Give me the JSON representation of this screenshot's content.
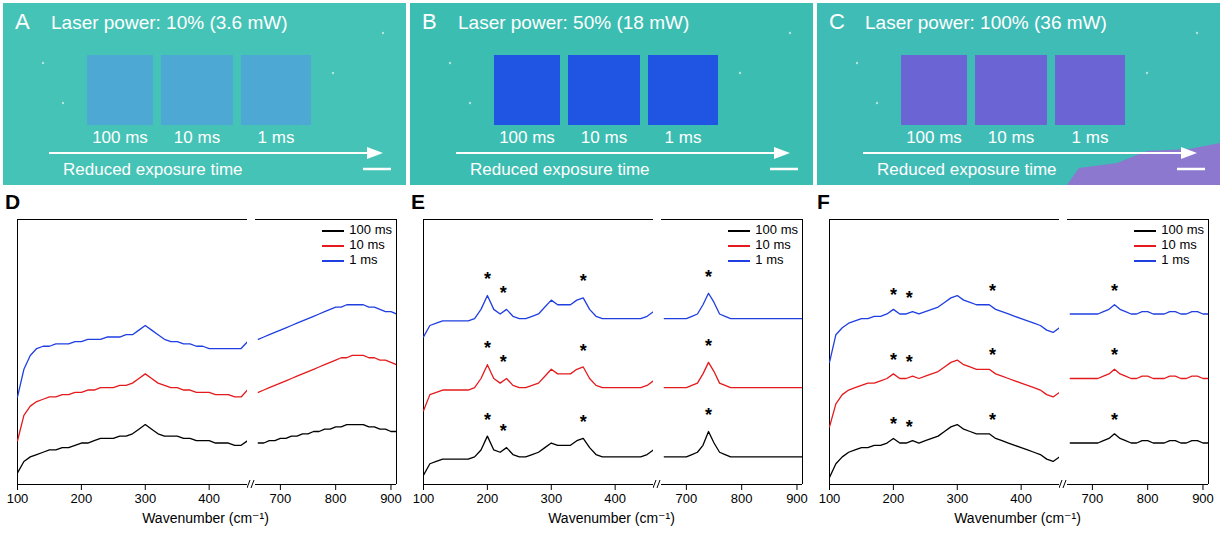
{
  "images": [
    {
      "panel": "A",
      "title": "Laser power: 10% (3.6 mW)",
      "labels": [
        "100 ms",
        "10 ms",
        "1 ms"
      ],
      "caption": "Reduced exposure time",
      "color": "#4ea6d6"
    },
    {
      "panel": "B",
      "title": "Laser power: 50% (18 mW)",
      "labels": [
        "100 ms",
        "10 ms",
        "1 ms"
      ],
      "caption": "Reduced exposure time",
      "color": "#1f4ee6"
    },
    {
      "panel": "C",
      "title": "Laser power: 100% (36 mW)",
      "labels": [
        "100 ms",
        "10 ms",
        "1 ms"
      ],
      "caption": "Reduced exposure time",
      "color": "#6e5fd6"
    }
  ],
  "chart_data": [
    {
      "type": "line",
      "title": "D",
      "x_label": "Wavenumber (cm⁻¹)",
      "x": [
        100,
        110,
        120,
        130,
        140,
        150,
        160,
        170,
        180,
        190,
        200,
        210,
        220,
        230,
        240,
        250,
        260,
        270,
        280,
        290,
        300,
        310,
        320,
        330,
        340,
        350,
        360,
        370,
        380,
        390,
        400,
        410,
        420,
        430,
        440,
        450,
        460,
        660,
        670,
        680,
        690,
        700,
        710,
        720,
        730,
        740,
        750,
        760,
        770,
        780,
        790,
        800,
        810,
        820,
        830,
        840,
        850,
        860,
        870,
        880,
        890,
        900,
        910
      ],
      "xlim": [
        100,
        910
      ],
      "x_break": [
        460,
        655
      ],
      "xticks": [
        100,
        200,
        300,
        400,
        700,
        800,
        900
      ],
      "ylim": [
        0,
        11.5
      ],
      "tick_labels": "x",
      "legend": "top-right",
      "series": [
        {
          "name": "100 ms",
          "color": "#000000",
          "values": [
            0.5,
            1.0,
            1.2,
            1.3,
            1.4,
            1.5,
            1.5,
            1.6,
            1.6,
            1.7,
            1.8,
            1.8,
            1.9,
            2.0,
            2.0,
            2.0,
            2.1,
            2.1,
            2.2,
            2.4,
            2.6,
            2.4,
            2.2,
            2.1,
            2.1,
            2.1,
            2.0,
            2.0,
            1.9,
            1.9,
            1.9,
            1.8,
            1.8,
            1.8,
            1.7,
            1.7,
            1.9,
            1.8,
            1.8,
            1.9,
            1.9,
            2.0,
            2.0,
            2.1,
            2.1,
            2.2,
            2.2,
            2.3,
            2.3,
            2.4,
            2.4,
            2.5,
            2.5,
            2.6,
            2.6,
            2.6,
            2.6,
            2.5,
            2.5,
            2.4,
            2.4,
            2.3,
            2.3
          ]
        },
        {
          "name": "10 ms",
          "color": "#e41a1c",
          "values": [
            1.9,
            3.0,
            3.4,
            3.6,
            3.7,
            3.8,
            3.8,
            3.9,
            3.9,
            4.0,
            4.0,
            4.1,
            4.1,
            4.2,
            4.2,
            4.2,
            4.3,
            4.3,
            4.4,
            4.6,
            4.8,
            4.6,
            4.4,
            4.3,
            4.2,
            4.2,
            4.1,
            4.1,
            4.0,
            4.0,
            4.0,
            3.9,
            3.9,
            3.9,
            3.8,
            3.8,
            4.1,
            4.0,
            4.1,
            4.2,
            4.3,
            4.4,
            4.5,
            4.6,
            4.7,
            4.8,
            4.9,
            5.0,
            5.1,
            5.2,
            5.3,
            5.4,
            5.5,
            5.5,
            5.6,
            5.6,
            5.6,
            5.5,
            5.5,
            5.4,
            5.4,
            5.3,
            5.2
          ]
        },
        {
          "name": "1 ms",
          "color": "#1f3fe0",
          "values": [
            3.8,
            5.0,
            5.6,
            5.9,
            6.0,
            6.0,
            6.1,
            6.1,
            6.1,
            6.2,
            6.2,
            6.3,
            6.3,
            6.3,
            6.4,
            6.4,
            6.4,
            6.5,
            6.5,
            6.7,
            6.9,
            6.7,
            6.5,
            6.3,
            6.2,
            6.2,
            6.1,
            6.1,
            6.0,
            6.0,
            5.9,
            5.9,
            5.9,
            5.9,
            5.9,
            5.9,
            6.2,
            6.3,
            6.4,
            6.5,
            6.6,
            6.7,
            6.8,
            6.9,
            7.0,
            7.1,
            7.2,
            7.3,
            7.4,
            7.5,
            7.6,
            7.7,
            7.7,
            7.8,
            7.8,
            7.8,
            7.8,
            7.7,
            7.7,
            7.6,
            7.5,
            7.5,
            7.4
          ]
        }
      ],
      "annotations": []
    },
    {
      "type": "line",
      "title": "E",
      "x_label": "Wavenumber (cm⁻¹)",
      "x": [
        100,
        110,
        120,
        130,
        140,
        150,
        160,
        170,
        180,
        190,
        200,
        210,
        220,
        230,
        240,
        250,
        260,
        270,
        280,
        290,
        300,
        310,
        320,
        330,
        340,
        350,
        360,
        370,
        380,
        390,
        400,
        410,
        420,
        430,
        440,
        450,
        460,
        660,
        670,
        680,
        690,
        700,
        710,
        720,
        730,
        740,
        750,
        760,
        770,
        780,
        790,
        800,
        810,
        820,
        830,
        840,
        850,
        860,
        870,
        880,
        890,
        900,
        910
      ],
      "xlim": [
        100,
        910
      ],
      "x_break": [
        460,
        655
      ],
      "xticks": [
        100,
        200,
        300,
        400,
        700,
        800,
        900
      ],
      "ylim": [
        0,
        11.5
      ],
      "tick_labels": "x",
      "legend": "top-right",
      "series": [
        {
          "name": "100 ms",
          "color": "#000000",
          "values": [
            0.4,
            0.9,
            1.0,
            1.1,
            1.1,
            1.1,
            1.1,
            1.1,
            1.2,
            1.5,
            2.1,
            1.5,
            1.4,
            1.6,
            1.3,
            1.2,
            1.2,
            1.3,
            1.4,
            1.6,
            1.8,
            1.7,
            1.7,
            1.7,
            1.9,
            2.0,
            1.6,
            1.3,
            1.2,
            1.2,
            1.2,
            1.2,
            1.2,
            1.2,
            1.2,
            1.3,
            1.5,
            1.2,
            1.2,
            1.2,
            1.2,
            1.2,
            1.3,
            1.4,
            1.7,
            2.3,
            1.8,
            1.4,
            1.3,
            1.2,
            1.2,
            1.2,
            1.2,
            1.2,
            1.2,
            1.2,
            1.2,
            1.2,
            1.2,
            1.2,
            1.2,
            1.2,
            1.2
          ]
        },
        {
          "name": "10 ms",
          "color": "#e41a1c",
          "values": [
            3.2,
            3.9,
            4.0,
            4.1,
            4.1,
            4.1,
            4.1,
            4.1,
            4.2,
            4.6,
            5.2,
            4.6,
            4.4,
            4.6,
            4.3,
            4.2,
            4.2,
            4.3,
            4.4,
            4.7,
            5.0,
            4.8,
            4.8,
            4.8,
            5.0,
            5.1,
            4.6,
            4.3,
            4.2,
            4.2,
            4.2,
            4.2,
            4.2,
            4.2,
            4.2,
            4.3,
            4.5,
            4.2,
            4.2,
            4.2,
            4.2,
            4.2,
            4.3,
            4.4,
            4.8,
            5.3,
            4.9,
            4.4,
            4.3,
            4.2,
            4.2,
            4.2,
            4.2,
            4.2,
            4.2,
            4.2,
            4.2,
            4.2,
            4.2,
            4.2,
            4.2,
            4.2,
            4.2
          ]
        },
        {
          "name": "1 ms",
          "color": "#1f3fe0",
          "values": [
            6.4,
            6.9,
            7.0,
            7.1,
            7.1,
            7.1,
            7.1,
            7.1,
            7.2,
            7.6,
            8.2,
            7.6,
            7.4,
            7.6,
            7.3,
            7.2,
            7.2,
            7.3,
            7.4,
            7.7,
            8.0,
            7.8,
            7.8,
            7.8,
            8.0,
            8.1,
            7.6,
            7.3,
            7.2,
            7.2,
            7.2,
            7.2,
            7.2,
            7.2,
            7.2,
            7.3,
            7.5,
            7.2,
            7.2,
            7.2,
            7.2,
            7.2,
            7.3,
            7.4,
            7.8,
            8.3,
            7.9,
            7.4,
            7.3,
            7.2,
            7.2,
            7.2,
            7.2,
            7.2,
            7.2,
            7.2,
            7.2,
            7.2,
            7.2,
            7.2,
            7.2,
            7.2,
            7.2
          ]
        }
      ],
      "annotations": [
        {
          "text": "*",
          "x": 200,
          "y": 2.8
        },
        {
          "text": "*",
          "x": 225,
          "y": 2.3
        },
        {
          "text": "*",
          "x": 350,
          "y": 2.7
        },
        {
          "text": "*",
          "x": 740,
          "y": 3.0
        },
        {
          "text": "*",
          "x": 200,
          "y": 5.9
        },
        {
          "text": "*",
          "x": 225,
          "y": 5.3
        },
        {
          "text": "*",
          "x": 350,
          "y": 5.8
        },
        {
          "text": "*",
          "x": 740,
          "y": 6.0
        },
        {
          "text": "*",
          "x": 200,
          "y": 8.9
        },
        {
          "text": "*",
          "x": 225,
          "y": 8.3
        },
        {
          "text": "*",
          "x": 350,
          "y": 8.8
        },
        {
          "text": "*",
          "x": 740,
          "y": 9.0
        }
      ]
    },
    {
      "type": "line",
      "title": "F",
      "x_label": "Wavenumber (cm⁻¹)",
      "x": [
        100,
        110,
        120,
        130,
        140,
        150,
        160,
        170,
        180,
        190,
        200,
        210,
        220,
        230,
        240,
        250,
        260,
        270,
        280,
        290,
        300,
        310,
        320,
        330,
        340,
        350,
        360,
        370,
        380,
        390,
        400,
        410,
        420,
        430,
        440,
        450,
        460,
        660,
        670,
        680,
        690,
        700,
        710,
        720,
        730,
        740,
        750,
        760,
        770,
        780,
        790,
        800,
        810,
        820,
        830,
        840,
        850,
        860,
        870,
        880,
        890,
        900,
        910
      ],
      "xlim": [
        100,
        910
      ],
      "x_break": [
        460,
        655
      ],
      "xticks": [
        100,
        200,
        300,
        400,
        700,
        800,
        900
      ],
      "ylim": [
        0,
        11.5
      ],
      "tick_labels": "x",
      "legend": "top-right",
      "series": [
        {
          "name": "100 ms",
          "color": "#000000",
          "values": [
            0.3,
            0.9,
            1.2,
            1.4,
            1.5,
            1.6,
            1.6,
            1.7,
            1.7,
            1.8,
            2.0,
            1.8,
            1.8,
            1.9,
            1.8,
            1.9,
            2.0,
            2.1,
            2.3,
            2.5,
            2.6,
            2.4,
            2.3,
            2.2,
            2.2,
            2.2,
            2.0,
            1.9,
            1.8,
            1.7,
            1.6,
            1.5,
            1.4,
            1.3,
            1.1,
            1.0,
            1.2,
            1.8,
            1.8,
            1.8,
            1.8,
            1.8,
            1.8,
            1.9,
            2.0,
            2.2,
            2.0,
            1.9,
            1.8,
            1.8,
            1.9,
            1.9,
            1.8,
            1.8,
            1.8,
            1.9,
            1.9,
            1.8,
            1.8,
            1.9,
            1.9,
            1.8,
            1.8
          ]
        },
        {
          "name": "10 ms",
          "color": "#e41a1c",
          "values": [
            2.5,
            3.5,
            3.9,
            4.1,
            4.2,
            4.3,
            4.4,
            4.4,
            4.5,
            4.6,
            4.8,
            4.6,
            4.6,
            4.7,
            4.6,
            4.7,
            4.8,
            4.9,
            5.1,
            5.3,
            5.4,
            5.2,
            5.1,
            5.0,
            5.0,
            5.0,
            4.8,
            4.7,
            4.6,
            4.5,
            4.4,
            4.3,
            4.2,
            4.1,
            3.9,
            3.8,
            4.0,
            4.6,
            4.6,
            4.6,
            4.6,
            4.6,
            4.6,
            4.7,
            4.8,
            5.0,
            4.8,
            4.7,
            4.6,
            4.6,
            4.7,
            4.7,
            4.6,
            4.6,
            4.6,
            4.7,
            4.7,
            4.6,
            4.6,
            4.7,
            4.7,
            4.6,
            4.6
          ]
        },
        {
          "name": "1 ms",
          "color": "#1f3fe0",
          "values": [
            5.3,
            6.5,
            6.8,
            7.0,
            7.1,
            7.2,
            7.2,
            7.3,
            7.3,
            7.4,
            7.6,
            7.4,
            7.4,
            7.5,
            7.4,
            7.5,
            7.6,
            7.7,
            7.9,
            8.1,
            8.2,
            8.0,
            7.9,
            7.8,
            7.8,
            7.8,
            7.6,
            7.5,
            7.4,
            7.3,
            7.2,
            7.1,
            7.0,
            6.9,
            6.7,
            6.6,
            6.8,
            7.4,
            7.4,
            7.4,
            7.4,
            7.4,
            7.4,
            7.5,
            7.6,
            7.8,
            7.6,
            7.5,
            7.4,
            7.4,
            7.5,
            7.5,
            7.4,
            7.4,
            7.4,
            7.5,
            7.5,
            7.4,
            7.4,
            7.5,
            7.5,
            7.4,
            7.4
          ]
        }
      ],
      "annotations": [
        {
          "text": "*",
          "x": 200,
          "y": 2.6
        },
        {
          "text": "*",
          "x": 225,
          "y": 2.5
        },
        {
          "text": "*",
          "x": 355,
          "y": 2.8
        },
        {
          "text": "*",
          "x": 740,
          "y": 2.8
        },
        {
          "text": "*",
          "x": 200,
          "y": 5.4
        },
        {
          "text": "*",
          "x": 225,
          "y": 5.3
        },
        {
          "text": "*",
          "x": 355,
          "y": 5.6
        },
        {
          "text": "*",
          "x": 740,
          "y": 5.6
        },
        {
          "text": "*",
          "x": 200,
          "y": 8.2
        },
        {
          "text": "*",
          "x": 225,
          "y": 8.1
        },
        {
          "text": "*",
          "x": 355,
          "y": 8.4
        },
        {
          "text": "*",
          "x": 740,
          "y": 8.4
        }
      ]
    }
  ]
}
